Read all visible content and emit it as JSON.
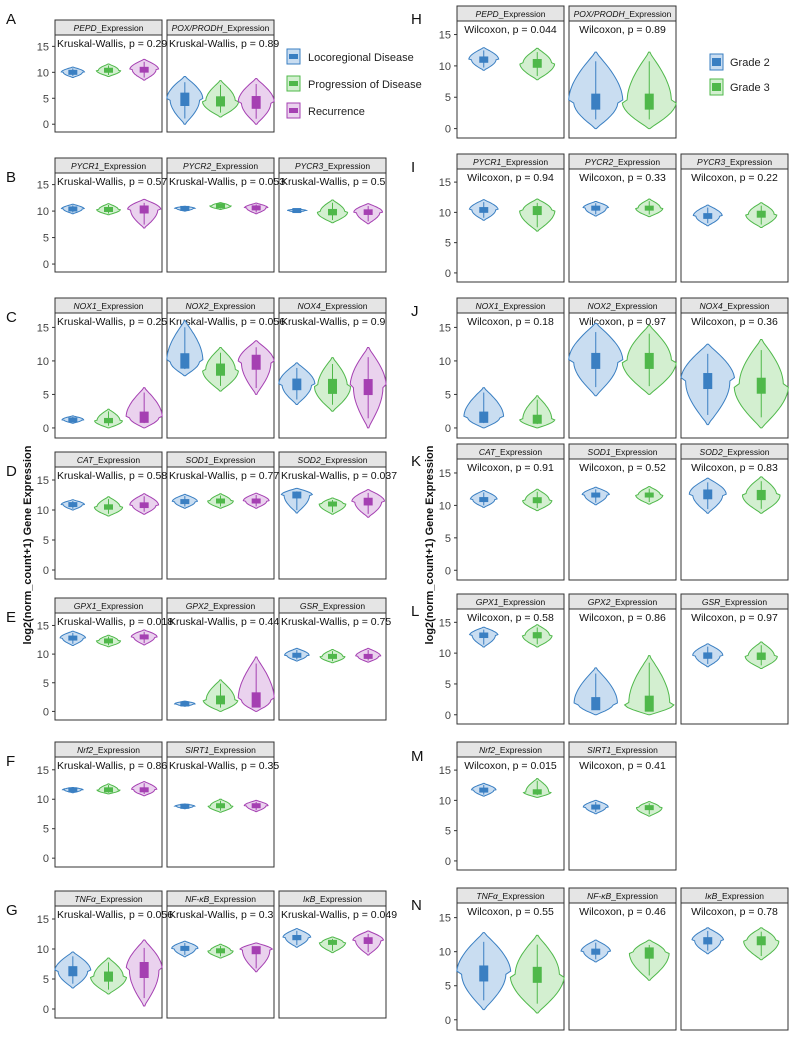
{
  "y_axis_title": "log2(norm_count+1) Gene Expression",
  "left_legend": {
    "items": [
      {
        "label": "Locoregional Disease",
        "color": "#3a7fc2",
        "fill": "#c9ddf1"
      },
      {
        "label": "Progression of Disease",
        "color": "#4fb84a",
        "fill": "#d3efd0"
      },
      {
        "label": "Recurrence",
        "color": "#a540b2",
        "fill": "#ead2ee"
      }
    ]
  },
  "right_legend": {
    "items": [
      {
        "label": "Grade 2",
        "color": "#3a7fc2",
        "fill": "#c9ddf1"
      },
      {
        "label": "Grade 3",
        "color": "#4fb84a",
        "fill": "#d3efd0"
      }
    ]
  },
  "y_ticks": [
    "0",
    "5",
    "10",
    "15"
  ],
  "chart_data": [
    {
      "type": "violin",
      "panel": "A",
      "test": "Kruskal-Wallis",
      "ylim": [
        -1.5,
        17
      ],
      "groups": [
        "Locoregional Disease",
        "Progression of Disease",
        "Recurrence"
      ],
      "facets": [
        {
          "gene": "PEPD",
          "title_suffix": "_Expression",
          "p_label": "Kruskal-Wallis, p = 0.29",
          "medians": [
            10,
            10.4,
            10.5
          ],
          "ranges": [
            [
              9,
              11
            ],
            [
              9.2,
              11.6
            ],
            [
              8.5,
              12.5
            ]
          ]
        },
        {
          "gene": "POX/PRODH",
          "title_suffix": "_Expression",
          "p_label": "Kruskal-Wallis, p = 0.89",
          "medians": [
            4.8,
            4.4,
            4.2
          ],
          "ranges": [
            [
              0,
              9.2
            ],
            [
              1.4,
              8.4
            ],
            [
              0,
              8.8
            ]
          ]
        }
      ]
    },
    {
      "type": "violin",
      "panel": "B",
      "test": "Kruskal-Wallis",
      "ylim": [
        -1.5,
        17
      ],
      "groups": [
        "Locoregional Disease",
        "Progression of Disease",
        "Recurrence"
      ],
      "facets": [
        {
          "gene": "PYCR1",
          "title_suffix": "_Expression",
          "p_label": "Kruskal-Wallis, p = 0.57",
          "medians": [
            10.4,
            10.3,
            10.3
          ],
          "ranges": [
            [
              9.5,
              11.3
            ],
            [
              9.3,
              11.4
            ],
            [
              6.8,
              12.2
            ]
          ]
        },
        {
          "gene": "PYCR2",
          "title_suffix": "_Expression",
          "p_label": "Kruskal-Wallis, p = 0.053",
          "medians": [
            10.5,
            11,
            10.6
          ],
          "ranges": [
            [
              10,
              10.9
            ],
            [
              10.3,
              11.6
            ],
            [
              9.5,
              11.5
            ]
          ]
        },
        {
          "gene": "PYCR3",
          "title_suffix": "_Expression",
          "p_label": "Kruskal-Wallis, p = 0.5",
          "medians": [
            10.1,
            9.8,
            9.8
          ],
          "ranges": [
            [
              9.8,
              10.4
            ],
            [
              7.8,
              12.1
            ],
            [
              7.6,
              11.4
            ]
          ]
        }
      ]
    },
    {
      "type": "violin",
      "panel": "C",
      "test": "Kruskal-Wallis",
      "ylim": [
        -1.5,
        17
      ],
      "groups": [
        "Locoregional Disease",
        "Progression of Disease",
        "Recurrence"
      ],
      "facets": [
        {
          "gene": "NOX1",
          "title_suffix": "_Expression",
          "p_label": "Kruskal-Wallis, p = 0.25",
          "medians": [
            1.2,
            1.1,
            1.6
          ],
          "ranges": [
            [
              0.7,
              1.8
            ],
            [
              0,
              2.8
            ],
            [
              0,
              6
            ]
          ]
        },
        {
          "gene": "NOX2",
          "title_suffix": "_Expression",
          "p_label": "Kruskal-Wallis, p = 0.056",
          "medians": [
            10,
            8.7,
            9.8
          ],
          "ranges": [
            [
              7.8,
              16
            ],
            [
              5.5,
              12
            ],
            [
              5,
              13
            ]
          ]
        },
        {
          "gene": "NOX4",
          "title_suffix": "_Expression",
          "p_label": "Kruskal-Wallis, p = 0.9",
          "medians": [
            6.5,
            6.2,
            6.1
          ],
          "ranges": [
            [
              3.5,
              9.7
            ],
            [
              2.5,
              10.5
            ],
            [
              0,
              12
            ]
          ]
        }
      ]
    },
    {
      "type": "violin",
      "panel": "D",
      "test": "Kruskal-Wallis",
      "ylim": [
        -1.5,
        17
      ],
      "groups": [
        "Locoregional Disease",
        "Progression of Disease",
        "Recurrence"
      ],
      "facets": [
        {
          "gene": "CAT",
          "title_suffix": "_Expression",
          "p_label": "Kruskal-Wallis, p = 0.58",
          "medians": [
            10.9,
            10.5,
            10.8
          ],
          "ranges": [
            [
              10,
              11.7
            ],
            [
              9,
              12.2
            ],
            [
              9.3,
              12.7
            ]
          ]
        },
        {
          "gene": "SOD1",
          "title_suffix": "_Expression",
          "p_label": "Kruskal-Wallis, p = 0.77",
          "medians": [
            11.4,
            11.5,
            11.5
          ],
          "ranges": [
            [
              10.3,
              12.6
            ],
            [
              10.3,
              12.7
            ],
            [
              10.3,
              12.8
            ]
          ]
        },
        {
          "gene": "SOD2",
          "title_suffix": "_Expression",
          "p_label": "Kruskal-Wallis, p = 0.037",
          "medians": [
            12.5,
            11,
            11.4
          ],
          "ranges": [
            [
              9.5,
              13.6
            ],
            [
              9.3,
              12
            ],
            [
              8.8,
              13.4
            ]
          ]
        }
      ]
    },
    {
      "type": "violin",
      "panel": "E",
      "test": "Kruskal-Wallis",
      "ylim": [
        -1.5,
        17
      ],
      "groups": [
        "Locoregional Disease",
        "Progression of Disease",
        "Recurrence"
      ],
      "facets": [
        {
          "gene": "GPX1",
          "title_suffix": "_Expression",
          "p_label": "Kruskal-Wallis, p = 0.018",
          "medians": [
            12.8,
            12.3,
            13
          ],
          "ranges": [
            [
              11.5,
              14
            ],
            [
              11.3,
              13.3
            ],
            [
              11.6,
              14.2
            ]
          ]
        },
        {
          "gene": "GPX2",
          "title_suffix": "_Expression",
          "p_label": "Kruskal-Wallis, p = 0.44",
          "medians": [
            1.3,
            2,
            2
          ],
          "ranges": [
            [
              0.9,
              1.8
            ],
            [
              0,
              5.5
            ],
            [
              0,
              9.5
            ]
          ]
        },
        {
          "gene": "GSR",
          "title_suffix": "_Expression",
          "p_label": "Kruskal-Wallis, p = 0.75",
          "medians": [
            9.8,
            9.6,
            9.6
          ],
          "ranges": [
            [
              8.8,
              11
            ],
            [
              8.5,
              10.8
            ],
            [
              8.6,
              11
            ]
          ]
        }
      ]
    },
    {
      "type": "violin",
      "panel": "F",
      "test": "Kruskal-Wallis",
      "ylim": [
        -1.5,
        17
      ],
      "groups": [
        "Locoregional Disease",
        "Progression of Disease",
        "Recurrence"
      ],
      "facets": [
        {
          "gene": "Nrf2",
          "title_suffix": "_Expression",
          "p_label": "Kruskal-Wallis, p = 0.86",
          "medians": [
            11.6,
            11.6,
            11.6
          ],
          "ranges": [
            [
              11.1,
              12
            ],
            [
              10.9,
              12.6
            ],
            [
              10.6,
              13
            ]
          ]
        },
        {
          "gene": "SIRT1",
          "title_suffix": "_Expression",
          "p_label": "Kruskal-Wallis, p = 0.35",
          "medians": [
            8.8,
            8.9,
            8.9
          ],
          "ranges": [
            [
              8.4,
              9.2
            ],
            [
              7.8,
              10
            ],
            [
              7.9,
              9.8
            ]
          ]
        }
      ]
    },
    {
      "type": "violin",
      "panel": "G",
      "test": "Kruskal-Wallis",
      "ylim": [
        -1.5,
        17
      ],
      "groups": [
        "Locoregional Disease",
        "Progression of Disease",
        "Recurrence"
      ],
      "facets": [
        {
          "gene": "TNFα",
          "title_suffix": "_Expression",
          "p_label": "Kruskal-Wallis, p = 0.056",
          "medians": [
            6.3,
            5.4,
            6.5
          ],
          "ranges": [
            [
              3.5,
              9.5
            ],
            [
              2.5,
              8.5
            ],
            [
              0.5,
              11.5
            ]
          ]
        },
        {
          "gene": "NF-κB",
          "title_suffix": "_Expression",
          "p_label": "Kruskal-Wallis, p = 0.3",
          "medians": [
            10.1,
            9.7,
            9.8
          ],
          "ranges": [
            [
              8.7,
              11.3
            ],
            [
              8.5,
              10.8
            ],
            [
              6.2,
              11
            ]
          ]
        },
        {
          "gene": "IκB",
          "title_suffix": "_Expression",
          "p_label": "Kruskal-Wallis, p = 0.049",
          "medians": [
            11.9,
            11.1,
            11.4
          ],
          "ranges": [
            [
              10.3,
              13.4
            ],
            [
              9.4,
              12
            ],
            [
              9,
              13
            ]
          ]
        }
      ]
    },
    {
      "type": "violin",
      "panel": "H",
      "test": "Wilcoxon",
      "ylim": [
        -1.5,
        17
      ],
      "groups": [
        "Grade 2",
        "Grade 3"
      ],
      "facets": [
        {
          "gene": "PEPD",
          "title_suffix": "_Expression",
          "p_label": "Wilcoxon, p = 0.044",
          "medians": [
            11,
            10.4
          ],
          "ranges": [
            [
              9.3,
              12.9
            ],
            [
              7.8,
              12.8
            ]
          ]
        },
        {
          "gene": "POX/PRODH",
          "title_suffix": "_Expression",
          "p_label": "Wilcoxon, p = 0.89",
          "medians": [
            4.3,
            4.3
          ],
          "ranges": [
            [
              0,
              12.2
            ],
            [
              0,
              12.2
            ]
          ]
        }
      ]
    },
    {
      "type": "violin",
      "panel": "I",
      "test": "Wilcoxon",
      "ylim": [
        -1.5,
        17
      ],
      "groups": [
        "Grade 2",
        "Grade 3"
      ],
      "facets": [
        {
          "gene": "PYCR1",
          "title_suffix": "_Expression",
          "p_label": "Wilcoxon, p = 0.94",
          "medians": [
            10.4,
            10.3
          ],
          "ranges": [
            [
              8.7,
              12.1
            ],
            [
              6.9,
              12.2
            ]
          ]
        },
        {
          "gene": "PYCR2",
          "title_suffix": "_Expression",
          "p_label": "Wilcoxon, p = 0.33",
          "medians": [
            10.7,
            10.7
          ],
          "ranges": [
            [
              9.4,
              11.8
            ],
            [
              9.3,
              12.2
            ]
          ]
        },
        {
          "gene": "PYCR3",
          "title_suffix": "_Expression",
          "p_label": "Wilcoxon, p = 0.22",
          "medians": [
            9.4,
            9.7
          ],
          "ranges": [
            [
              7.8,
              11.2
            ],
            [
              7.5,
              11.6
            ]
          ]
        }
      ]
    },
    {
      "type": "violin",
      "panel": "J",
      "test": "Wilcoxon",
      "ylim": [
        -1.5,
        17
      ],
      "groups": [
        "Grade 2",
        "Grade 3"
      ],
      "facets": [
        {
          "gene": "NOX1",
          "title_suffix": "_Expression",
          "p_label": "Wilcoxon, p = 0.18",
          "medians": [
            1.6,
            1.3
          ],
          "ranges": [
            [
              0,
              6
            ],
            [
              0,
              4.8
            ]
          ]
        },
        {
          "gene": "NOX2",
          "title_suffix": "_Expression",
          "p_label": "Wilcoxon, p = 0.97",
          "medians": [
            10,
            10
          ],
          "ranges": [
            [
              4.8,
              15.6
            ],
            [
              5,
              15.3
            ]
          ]
        },
        {
          "gene": "NOX4",
          "title_suffix": "_Expression",
          "p_label": "Wilcoxon, p = 0.36",
          "medians": [
            7,
            6.3
          ],
          "ranges": [
            [
              0.5,
              12.5
            ],
            [
              0,
              13.2
            ]
          ]
        }
      ]
    },
    {
      "type": "violin",
      "panel": "K",
      "test": "Wilcoxon",
      "ylim": [
        -1.5,
        17
      ],
      "groups": [
        "Grade 2",
        "Grade 3"
      ],
      "facets": [
        {
          "gene": "CAT",
          "title_suffix": "_Expression",
          "p_label": "Wilcoxon, p = 0.91",
          "medians": [
            10.9,
            10.8
          ],
          "ranges": [
            [
              9.7,
              12.3
            ],
            [
              9.2,
              12.5
            ]
          ]
        },
        {
          "gene": "SOD1",
          "title_suffix": "_Expression",
          "p_label": "Wilcoxon, p = 0.52",
          "medians": [
            11.6,
            11.6
          ],
          "ranges": [
            [
              10.1,
              12.8
            ],
            [
              10.2,
              12.9
            ]
          ]
        },
        {
          "gene": "SOD2",
          "title_suffix": "_Expression",
          "p_label": "Wilcoxon, p = 0.83",
          "medians": [
            11.7,
            11.6
          ],
          "ranges": [
            [
              8.8,
              14.2
            ],
            [
              8.8,
              14.4
            ]
          ]
        }
      ]
    },
    {
      "type": "violin",
      "panel": "L",
      "test": "Wilcoxon",
      "ylim": [
        -1.5,
        17
      ],
      "groups": [
        "Grade 2",
        "Grade 3"
      ],
      "facets": [
        {
          "gene": "GPX1",
          "title_suffix": "_Expression",
          "p_label": "Wilcoxon, p = 0.58",
          "medians": [
            12.9,
            12.9
          ],
          "ranges": [
            [
              11,
              14.2
            ],
            [
              11,
              14.6
            ]
          ]
        },
        {
          "gene": "GPX2",
          "title_suffix": "_Expression",
          "p_label": "Wilcoxon, p = 0.86",
          "medians": [
            1.8,
            1.8
          ],
          "ranges": [
            [
              0,
              7.6
            ],
            [
              0,
              9.6
            ]
          ]
        },
        {
          "gene": "GSR",
          "title_suffix": "_Expression",
          "p_label": "Wilcoxon, p = 0.97",
          "medians": [
            9.6,
            9.5
          ],
          "ranges": [
            [
              7.8,
              11.5
            ],
            [
              7.5,
              11.8
            ]
          ]
        }
      ]
    },
    {
      "type": "violin",
      "panel": "M",
      "test": "Wilcoxon",
      "ylim": [
        -1.5,
        17
      ],
      "groups": [
        "Grade 2",
        "Grade 3"
      ],
      "facets": [
        {
          "gene": "Nrf2",
          "title_suffix": "_Expression",
          "p_label": "Wilcoxon, p = 0.015",
          "medians": [
            11.7,
            11.4
          ],
          "ranges": [
            [
              10.7,
              12.8
            ],
            [
              10.5,
              13.6
            ]
          ]
        },
        {
          "gene": "SIRT1",
          "title_suffix": "_Expression",
          "p_label": "Wilcoxon, p = 0.41",
          "medians": [
            8.9,
            8.8
          ],
          "ranges": [
            [
              7.8,
              10
            ],
            [
              7.4,
              9.8
            ]
          ]
        }
      ]
    },
    {
      "type": "violin",
      "panel": "N",
      "test": "Wilcoxon",
      "ylim": [
        -1.5,
        17
      ],
      "groups": [
        "Grade 2",
        "Grade 3"
      ],
      "facets": [
        {
          "gene": "TNFα",
          "title_suffix": "_Expression",
          "p_label": "Wilcoxon, p = 0.55",
          "medians": [
            6.8,
            6.6
          ],
          "ranges": [
            [
              1.5,
              12.8
            ],
            [
              1,
              12.4
            ]
          ]
        },
        {
          "gene": "NF-κB",
          "title_suffix": "_Expression",
          "p_label": "Wilcoxon, p = 0.46",
          "medians": [
            10,
            9.8
          ],
          "ranges": [
            [
              8.5,
              11.7
            ],
            [
              5.8,
              11.7
            ]
          ]
        },
        {
          "gene": "IκB",
          "title_suffix": "_Expression",
          "p_label": "Wilcoxon, p = 0.78",
          "medians": [
            11.6,
            11.6
          ],
          "ranges": [
            [
              9.7,
              13.5
            ],
            [
              8.8,
              13.5
            ]
          ]
        }
      ]
    }
  ]
}
